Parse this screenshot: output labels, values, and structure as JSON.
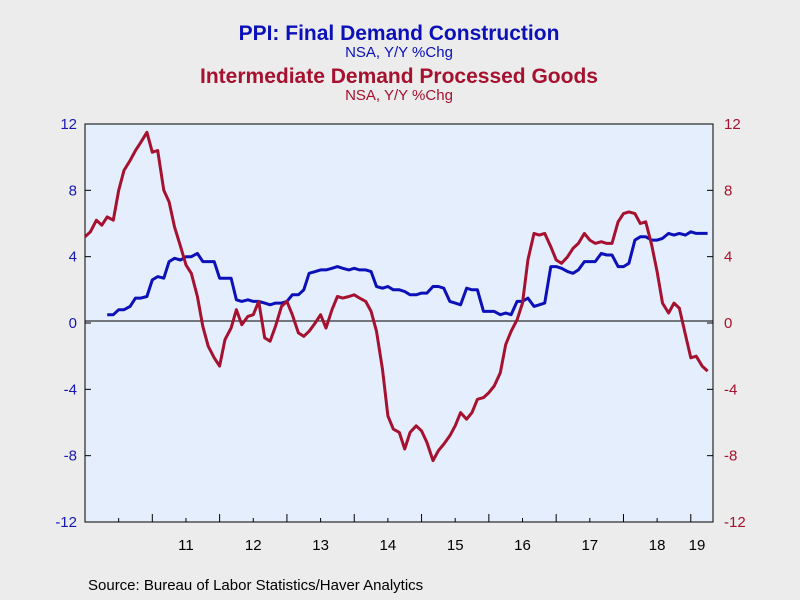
{
  "chart_data": {
    "type": "line",
    "title": "PPI: Final Demand Construction",
    "subtitle": "NSA, Y/Y %Chg",
    "title2": "Intermediate Demand Processed Goods",
    "subtitle2": "NSA, Y/Y %Chg",
    "source": "Source:  Bureau of Labor Statistics/Haver Analytics",
    "ylim": [
      -12,
      12
    ],
    "yticks": [
      "12",
      "8",
      "4",
      "0",
      "-4",
      "-8",
      "-12"
    ],
    "yticks_right": [
      "12",
      "8",
      "4",
      "0",
      "-4",
      "-8",
      "-12"
    ],
    "xlim": [
      2010.0,
      2019.33
    ],
    "xtick_labels": [
      "11",
      "12",
      "13",
      "14",
      "15",
      "16",
      "17",
      "18",
      "19"
    ],
    "colors": {
      "blue": "#0b10b8",
      "red": "#a5112e",
      "plot_bg": "#e4eefc",
      "page_bg": "#ececec"
    },
    "series": [
      {
        "color": "#0b10b8",
        "axis": "left",
        "x": [
          2010.33,
          2010.42,
          2010.5,
          2010.58,
          2010.67,
          2010.75,
          2010.83,
          2010.92,
          2011.0,
          2011.08,
          2011.17,
          2011.25,
          2011.33,
          2011.42,
          2011.5,
          2011.58,
          2011.67,
          2011.75,
          2011.83,
          2011.92,
          2012.0,
          2012.08,
          2012.17,
          2012.25,
          2012.33,
          2012.42,
          2012.5,
          2012.58,
          2012.67,
          2012.75,
          2012.83,
          2012.92,
          2013.0,
          2013.08,
          2013.17,
          2013.25,
          2013.33,
          2013.42,
          2013.5,
          2013.58,
          2013.67,
          2013.75,
          2013.83,
          2013.92,
          2014.0,
          2014.08,
          2014.17,
          2014.25,
          2014.33,
          2014.42,
          2014.5,
          2014.58,
          2014.67,
          2014.75,
          2014.83,
          2014.92,
          2015.0,
          2015.08,
          2015.17,
          2015.25,
          2015.33,
          2015.42,
          2015.5,
          2015.58,
          2015.67,
          2015.75,
          2015.83,
          2015.92,
          2016.0,
          2016.08,
          2016.17,
          2016.25,
          2016.33,
          2016.42,
          2016.5,
          2016.58,
          2016.67,
          2016.75,
          2016.83,
          2016.92,
          2017.0,
          2017.08,
          2017.17,
          2017.25,
          2017.33,
          2017.42,
          2017.5,
          2017.58,
          2017.67,
          2017.75,
          2017.83,
          2017.92,
          2018.0,
          2018.08,
          2018.17,
          2018.25,
          2018.33,
          2018.42,
          2018.5,
          2018.58,
          2018.67,
          2018.75,
          2018.83,
          2018.92,
          2019.0,
          2019.08,
          2019.17,
          2019.25
        ],
        "y": [
          0.5,
          0.5,
          0.8,
          0.8,
          1.0,
          1.5,
          1.5,
          1.6,
          2.6,
          2.8,
          2.7,
          3.7,
          3.9,
          3.8,
          4.0,
          4.0,
          4.2,
          3.7,
          3.7,
          3.7,
          2.7,
          2.7,
          2.7,
          1.4,
          1.3,
          1.4,
          1.3,
          1.3,
          1.2,
          1.1,
          1.2,
          1.2,
          1.3,
          1.7,
          1.7,
          2.0,
          3.0,
          3.1,
          3.2,
          3.2,
          3.3,
          3.4,
          3.3,
          3.2,
          3.3,
          3.2,
          3.2,
          3.1,
          2.2,
          2.1,
          2.2,
          2.0,
          2.0,
          1.9,
          1.7,
          1.7,
          1.8,
          1.8,
          2.2,
          2.2,
          2.1,
          1.3,
          1.2,
          1.1,
          2.1,
          2.0,
          2.0,
          0.7,
          0.7,
          0.7,
          0.5,
          0.6,
          0.5,
          1.3,
          1.3,
          1.5,
          1.0,
          1.1,
          1.2,
          3.4,
          3.4,
          3.3,
          3.1,
          3.0,
          3.2,
          3.7,
          3.7,
          3.7,
          4.2,
          4.1,
          4.1,
          3.4,
          3.4,
          3.6,
          5.0,
          5.2,
          5.2,
          5.0,
          5.0,
          5.1,
          5.4,
          5.3,
          5.4,
          5.3,
          5.5,
          5.4,
          5.4,
          5.4
        ]
      },
      {
        "color": "#a5112e",
        "axis": "right",
        "x": [
          2010.0,
          2010.08,
          2010.17,
          2010.25,
          2010.33,
          2010.42,
          2010.5,
          2010.58,
          2010.67,
          2010.75,
          2010.83,
          2010.92,
          2011.0,
          2011.08,
          2011.17,
          2011.25,
          2011.33,
          2011.42,
          2011.5,
          2011.58,
          2011.67,
          2011.75,
          2011.83,
          2011.92,
          2012.0,
          2012.08,
          2012.17,
          2012.25,
          2012.33,
          2012.42,
          2012.5,
          2012.58,
          2012.67,
          2012.75,
          2012.83,
          2012.92,
          2013.0,
          2013.08,
          2013.17,
          2013.25,
          2013.33,
          2013.42,
          2013.5,
          2013.58,
          2013.67,
          2013.75,
          2013.83,
          2013.92,
          2014.0,
          2014.08,
          2014.17,
          2014.25,
          2014.33,
          2014.42,
          2014.5,
          2014.58,
          2014.67,
          2014.75,
          2014.83,
          2014.92,
          2015.0,
          2015.08,
          2015.17,
          2015.25,
          2015.33,
          2015.42,
          2015.5,
          2015.58,
          2015.67,
          2015.75,
          2015.83,
          2015.92,
          2016.0,
          2016.08,
          2016.17,
          2016.25,
          2016.33,
          2016.42,
          2016.5,
          2016.58,
          2016.67,
          2016.75,
          2016.83,
          2016.92,
          2017.0,
          2017.08,
          2017.17,
          2017.25,
          2017.33,
          2017.42,
          2017.5,
          2017.58,
          2017.67,
          2017.75,
          2017.83,
          2017.92,
          2018.0,
          2018.08,
          2018.17,
          2018.25,
          2018.33,
          2018.42,
          2018.5,
          2018.58,
          2018.67,
          2018.75,
          2018.83,
          2018.92,
          2019.0,
          2019.08,
          2019.17,
          2019.25
        ],
        "y": [
          5.2,
          5.5,
          6.2,
          5.9,
          6.4,
          6.2,
          8.0,
          9.2,
          9.8,
          10.4,
          10.9,
          11.5,
          10.3,
          10.4,
          8.0,
          7.3,
          5.8,
          4.6,
          3.5,
          3.0,
          1.6,
          -0.2,
          -1.4,
          -2.1,
          -2.6,
          -1.0,
          -0.3,
          0.8,
          -0.1,
          0.4,
          0.5,
          1.3,
          -0.9,
          -1.1,
          -0.2,
          1.0,
          1.3,
          0.5,
          -0.6,
          -0.8,
          -0.5,
          0.0,
          0.5,
          -0.3,
          0.8,
          1.6,
          1.5,
          1.6,
          1.7,
          1.5,
          1.3,
          0.7,
          -0.5,
          -2.8,
          -5.6,
          -6.4,
          -6.6,
          -7.6,
          -6.6,
          -6.2,
          -6.5,
          -7.2,
          -8.3,
          -7.7,
          -7.3,
          -6.8,
          -6.2,
          -5.4,
          -5.8,
          -5.4,
          -4.6,
          -4.5,
          -4.2,
          -3.8,
          -3.0,
          -1.3,
          -0.5,
          0.2,
          1.2,
          3.8,
          5.4,
          5.3,
          5.4,
          4.6,
          3.8,
          3.6,
          4.0,
          4.5,
          4.8,
          5.4,
          5.0,
          4.8,
          4.9,
          4.8,
          4.8,
          6.1,
          6.6,
          6.7,
          6.6,
          6.0,
          6.1,
          4.7,
          3.1,
          1.2,
          0.6,
          1.2,
          0.9,
          -0.7,
          -2.1,
          -2.0,
          -2.6,
          -2.9
        ]
      }
    ]
  }
}
